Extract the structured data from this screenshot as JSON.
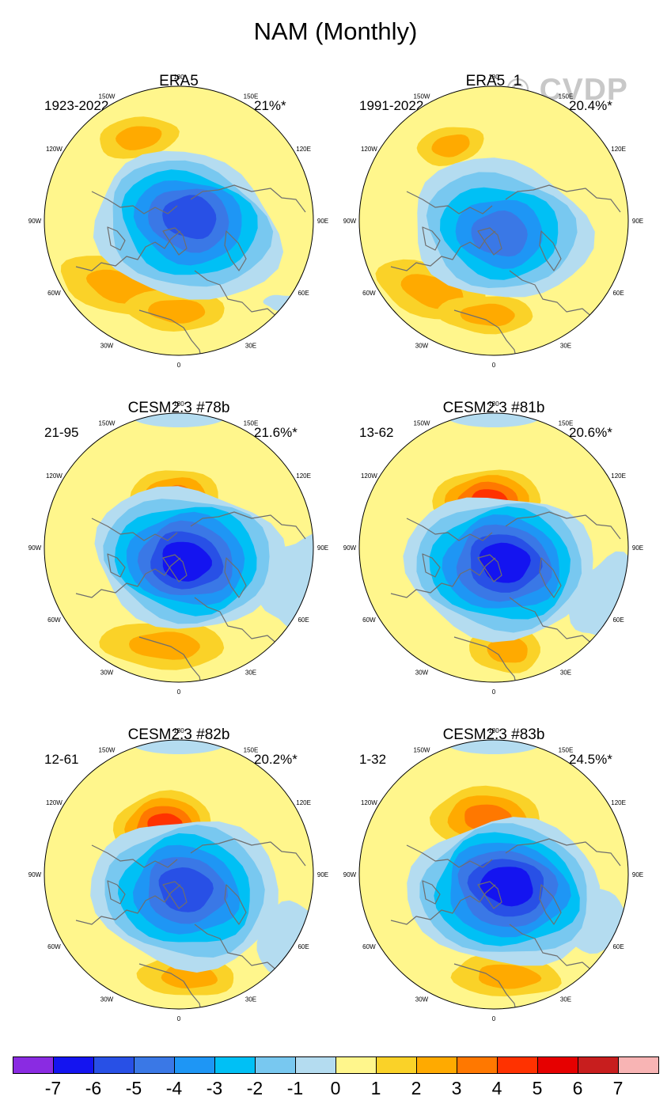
{
  "title": "NAM (Monthly)",
  "watermark": "© CVDP",
  "longitude_labels": [
    "180",
    "150E",
    "120E",
    "90E",
    "60E",
    "30E",
    "0",
    "30W",
    "60W",
    "90W",
    "120W",
    "150W"
  ],
  "panels": [
    {
      "title": "ERA5",
      "period": "1923-2022",
      "variance": "21%*"
    },
    {
      "title": "ERA5_1",
      "period": "1991-2022",
      "variance": "20.4%*"
    },
    {
      "title": "CESM2.3 #78b",
      "period": "21-95",
      "variance": "21.6%*"
    },
    {
      "title": "CESM2.3 #81b",
      "period": "13-62",
      "variance": "20.6%*"
    },
    {
      "title": "CESM2.3 #82b",
      "period": "12-61",
      "variance": "20.2%*"
    },
    {
      "title": "CESM2.3 #83b",
      "period": "1-32",
      "variance": "24.5%*"
    }
  ],
  "colorbar": {
    "labels": [
      "-7",
      "-6",
      "-5",
      "-4",
      "-3",
      "-2",
      "-1",
      "0",
      "1",
      "2",
      "3",
      "4",
      "5",
      "6",
      "7"
    ],
    "colors": [
      "#8a2be2",
      "#1414f0",
      "#2850e6",
      "#3a78e6",
      "#1e96f5",
      "#00c0f5",
      "#78c8f0",
      "#b4dcf0",
      "#fff68c",
      "#fad228",
      "#ffaa00",
      "#ff7800",
      "#ff3200",
      "#e60000",
      "#c81e1e",
      "#f8b4b4"
    ]
  }
}
